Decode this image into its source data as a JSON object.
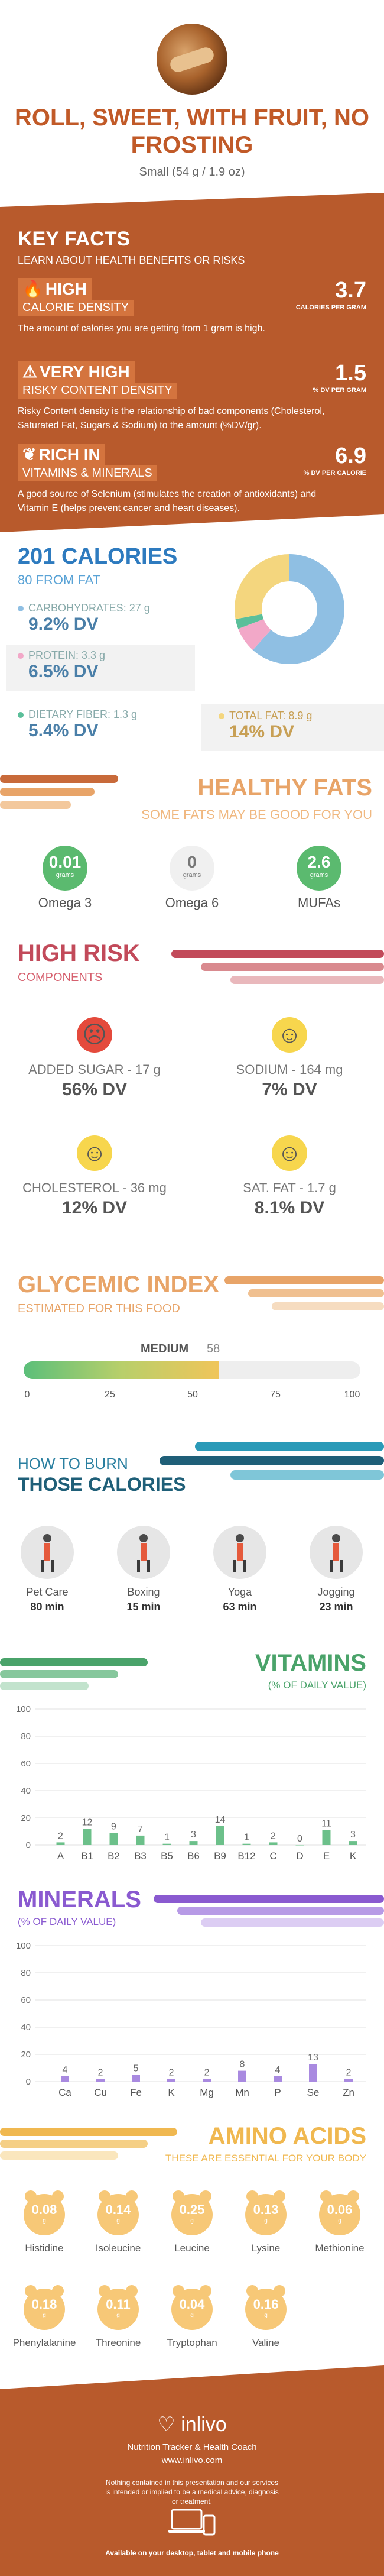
{
  "header": {
    "title": "ROLL, SWEET, WITH FRUIT, NO FROSTING",
    "serving": "Small (54 g / 1.9 oz)"
  },
  "key_facts": {
    "title": "KEY FACTS",
    "subtitle": "LEARN ABOUT HEALTH BENEFITS OR RISKS",
    "items": [
      {
        "level": "HIGH",
        "category": "CALORIE DENSITY",
        "description": "The amount of calories you are getting from 1 gram is high.",
        "value": "3.7",
        "unit": "CALORIES PER GRAM",
        "icon": "flame-icon"
      },
      {
        "level": "VERY HIGH",
        "category": "RISKY CONTENT DENSITY",
        "description": "Risky Content density is the relationship of bad components (Cholesterol, Saturated Fat, Sugars & Sodium) to the amount (%DV/gr).",
        "value": "1.5",
        "unit": "% DV PER GRAM",
        "icon": "warning-icon"
      },
      {
        "level": "RICH IN",
        "category": "VITAMINS & MINERALS",
        "description": "A good source of Selenium (stimulates the creation of antioxidants) and Vitamin E (helps prevent cancer and heart diseases).",
        "value": "6.9",
        "unit": "% DV PER CALORIE",
        "icon": "leaf-icon"
      }
    ]
  },
  "calories": {
    "headline": "201 CALORIES",
    "from_fat": "80 FROM FAT",
    "carbs": {
      "label": "CARBOHYDRATES: 27 g",
      "dv": "9.2% DV",
      "color": "#8fbfe3"
    },
    "protein": {
      "label": "PROTEIN: 3.3 g",
      "dv": "6.5% DV",
      "color": "#f2a8c8"
    },
    "fiber": {
      "label": "DIETARY FIBER: 1.3 g",
      "dv": "5.4% DV",
      "color": "#5bbf9a"
    },
    "total_fat": {
      "label": "TOTAL FAT: 8.9 g",
      "dv": "14% DV",
      "color": "#f4d67e"
    }
  },
  "healthy_fats": {
    "title": "HEALTHY FATS",
    "subtitle": "SOME FATS MAY BE GOOD FOR YOU",
    "unit": "grams",
    "items": [
      {
        "name": "Omega 3",
        "value": "0.01"
      },
      {
        "name": "Omega 6",
        "value": "0"
      },
      {
        "name": "MUFAs",
        "value": "2.6"
      }
    ]
  },
  "high_risk": {
    "title": "HIGH RISK",
    "subtitle": "COMPONENTS",
    "items": [
      {
        "label": "ADDED SUGAR - 17 g",
        "dv": "56% DV",
        "face": "☹",
        "status": "bad"
      },
      {
        "label": "SODIUM - 164 mg",
        "dv": "7% DV",
        "face": "☺",
        "status": "ok"
      },
      {
        "label": "CHOLESTEROL - 36 mg",
        "dv": "12% DV",
        "face": "☺",
        "status": "ok"
      },
      {
        "label": "SAT. FAT - 1.7 g",
        "dv": "8.1% DV",
        "face": "☺",
        "status": "ok"
      }
    ]
  },
  "glycemic": {
    "title": "GLYCEMIC INDEX",
    "subtitle": "ESTIMATED FOR THIS FOOD",
    "level": "MEDIUM",
    "value": "58",
    "fraction": 0.58,
    "ticks": [
      "0",
      "25",
      "50",
      "75",
      "100"
    ]
  },
  "burn": {
    "title_line1": "HOW TO BURN",
    "title_line2": "THOSE CALORIES",
    "activities": [
      {
        "name": "Pet Care",
        "minutes": "80 min"
      },
      {
        "name": "Boxing",
        "minutes": "15 min"
      },
      {
        "name": "Yoga",
        "minutes": "63 min"
      },
      {
        "name": "Jogging",
        "minutes": "23 min"
      }
    ]
  },
  "vitamins": {
    "title": "VITAMINS",
    "subtitle": "(% OF DAILY VALUE)",
    "color": "#6cc08a"
  },
  "minerals": {
    "title": "MINERALS",
    "subtitle": "(% OF DAILY VALUE)",
    "color": "#a98ae0"
  },
  "chart_data": [
    {
      "type": "bar",
      "title": "VITAMINS",
      "ylabel": "",
      "ylim": [
        0,
        100
      ],
      "yticks": [
        0,
        20,
        40,
        60,
        80,
        100
      ],
      "categories": [
        "A",
        "B1",
        "B2",
        "B3",
        "B5",
        "B6",
        "B9",
        "B12",
        "C",
        "D",
        "E",
        "K"
      ],
      "values": [
        2,
        12,
        9,
        7,
        1,
        3,
        14,
        1,
        2,
        0,
        11,
        3
      ],
      "grid": true
    },
    {
      "type": "bar",
      "title": "MINERALS",
      "ylabel": "",
      "ylim": [
        0,
        100
      ],
      "yticks": [
        0,
        20,
        40,
        60,
        80,
        100
      ],
      "categories": [
        "Ca",
        "Cu",
        "Fe",
        "K",
        "Mg",
        "Mn",
        "P",
        "Se",
        "Zn"
      ],
      "values": [
        4,
        2,
        5,
        2,
        2,
        8,
        4,
        13,
        2
      ],
      "grid": true
    }
  ],
  "amino": {
    "title": "AMINO ACIDS",
    "subtitle": "THESE ARE ESSENTIAL FOR YOUR BODY",
    "unit": "g",
    "items": [
      {
        "name": "Histidine",
        "value": "0.08"
      },
      {
        "name": "Isoleucine",
        "value": "0.14"
      },
      {
        "name": "Leucine",
        "value": "0.25"
      },
      {
        "name": "Lysine",
        "value": "0.13"
      },
      {
        "name": "Methionine",
        "value": "0.06"
      },
      {
        "name": "Phenylalanine",
        "value": "0.18"
      },
      {
        "name": "Threonine",
        "value": "0.11"
      },
      {
        "name": "Tryptophan",
        "value": "0.04"
      },
      {
        "name": "Valine",
        "value": "0.16"
      }
    ]
  },
  "footer": {
    "logo": "inlivo",
    "tagline": "Nutrition Tracker & Health Coach",
    "url": "www.inlivo.com",
    "disclaimer": "Nothing contained in this presentation and our services is intended or implied to be a medical advice, diagnosis or treatment.",
    "availability": "Available on your desktop, tablet and mobile phone"
  }
}
